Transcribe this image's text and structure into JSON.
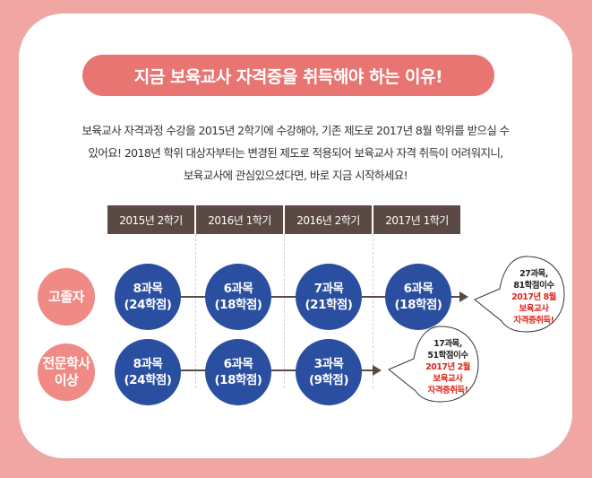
{
  "title": "지금 보육교사 자격증을 취득해야 하는 이유!",
  "intro": [
    "보육교사 자격과정 수강을 2015년 2학기에 수강해야, 기존 제도로 2017년 8월 학위를 받으실 수",
    "있어요! 2018년 학위 대상자부터는 변경된 제도로 적용되어 보육교사 자격 취득이 어려워지니,",
    "보육교사에 관심있으셨다면, 바로 지금 시작하세요!"
  ],
  "semesters": [
    "2015년 2학기",
    "2016년 1학기",
    "2016년 2학기",
    "2017년 1학기"
  ],
  "rows": [
    {
      "label": [
        "고졸자"
      ],
      "courses": [
        {
          "count": "8과목",
          "credits": "(24학점)"
        },
        {
          "count": "6과목",
          "credits": "(18학점)"
        },
        {
          "count": "7과목",
          "credits": "(21학점)"
        },
        {
          "count": "6과목",
          "credits": "(18학점)"
        }
      ],
      "result": {
        "line1": "27과목,",
        "line2": "81학점이수",
        "date": "2017년 8월",
        "line4": "보육교사",
        "line5": "자격증취득!"
      }
    },
    {
      "label": [
        "전문학사",
        "이상"
      ],
      "courses": [
        {
          "count": "8과목",
          "credits": "(24학점)"
        },
        {
          "count": "6과목",
          "credits": "(18학점)"
        },
        {
          "count": "3과목",
          "credits": "(9학점)"
        }
      ],
      "result": {
        "line1": "17과목,",
        "line2": "51학점이수",
        "date": "2017년 2월",
        "line4": "보육교사",
        "line5": "자격증취득!"
      }
    }
  ],
  "colors": {
    "background": "#f0a7a4",
    "title_pill": "#e97572",
    "header_bar": "#5b4a44",
    "course_circle": "#2b4fa0",
    "row_label": "#ef8a85",
    "highlight": "#e1251b"
  }
}
